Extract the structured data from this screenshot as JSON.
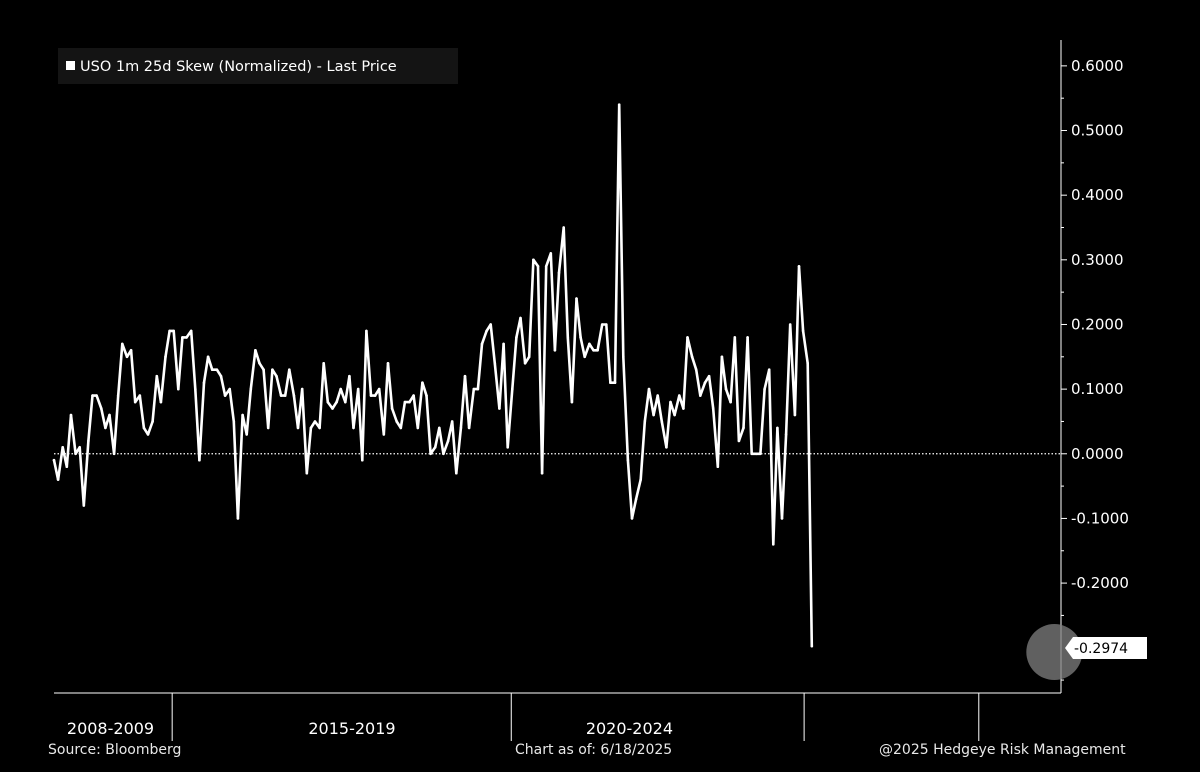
{
  "chart_data": {
    "type": "line",
    "legend": {
      "label": "USO 1m 25d Skew (Normalized) - Last Price",
      "placement": "top-left"
    },
    "line_color": "#ffffff",
    "background_color": "#000000",
    "zero_line_style": "dotted",
    "ylim": [
      -0.37,
      0.64
    ],
    "yticks": [
      {
        "value": 0.6,
        "label": "0.6000"
      },
      {
        "value": 0.5,
        "label": "0.5000"
      },
      {
        "value": 0.4,
        "label": "0.4000"
      },
      {
        "value": 0.3,
        "label": "0.3000"
      },
      {
        "value": 0.2,
        "label": "0.2000"
      },
      {
        "value": 0.1,
        "label": "0.1000"
      },
      {
        "value": 0.0,
        "label": "0.0000"
      },
      {
        "value": -0.1,
        "label": "-0.1000"
      },
      {
        "value": -0.2,
        "label": "-0.2000"
      }
    ],
    "xlim": [
      2006.0,
      2025.6
    ],
    "x_ticks": [
      2008.3,
      2014.9,
      2020.6,
      2024.0
    ],
    "period_labels": [
      {
        "x": 2007.1,
        "label": "2008-2009"
      },
      {
        "x": 2011.8,
        "label": "2015-2019"
      },
      {
        "x": 2017.2,
        "label": "2020-2024"
      }
    ],
    "last_value": {
      "x": 2025.47,
      "value": -0.2974,
      "label": "-0.2974"
    },
    "series": [
      {
        "points": [
          [
            2006.0,
            -0.01
          ],
          [
            2006.08,
            -0.04
          ],
          [
            2006.17,
            0.01
          ],
          [
            2006.25,
            -0.02
          ],
          [
            2006.33,
            0.06
          ],
          [
            2006.42,
            -0.0
          ],
          [
            2006.5,
            0.01
          ],
          [
            2006.58,
            -0.08
          ],
          [
            2006.67,
            0.02
          ],
          [
            2006.75,
            0.09
          ],
          [
            2006.83,
            0.09
          ],
          [
            2006.92,
            0.07
          ],
          [
            2007.0,
            0.04
          ],
          [
            2007.08,
            0.06
          ],
          [
            2007.17,
            0.0
          ],
          [
            2007.25,
            0.09
          ],
          [
            2007.33,
            0.17
          ],
          [
            2007.42,
            0.15
          ],
          [
            2007.5,
            0.16
          ],
          [
            2007.58,
            0.08
          ],
          [
            2007.67,
            0.09
          ],
          [
            2007.75,
            0.04
          ],
          [
            2007.83,
            0.03
          ],
          [
            2007.92,
            0.05
          ],
          [
            2008.0,
            0.12
          ],
          [
            2008.08,
            0.08
          ],
          [
            2008.17,
            0.15
          ],
          [
            2008.25,
            0.19
          ],
          [
            2008.33,
            0.19
          ],
          [
            2008.42,
            0.1
          ],
          [
            2008.5,
            0.18
          ],
          [
            2008.58,
            0.18
          ],
          [
            2008.67,
            0.19
          ],
          [
            2008.75,
            0.1
          ],
          [
            2008.83,
            -0.01
          ],
          [
            2008.92,
            0.11
          ],
          [
            2009.0,
            0.15
          ],
          [
            2009.08,
            0.13
          ],
          [
            2009.17,
            0.13
          ],
          [
            2009.25,
            0.12
          ],
          [
            2009.33,
            0.09
          ],
          [
            2009.42,
            0.1
          ],
          [
            2009.5,
            0.05
          ],
          [
            2009.58,
            -0.1
          ],
          [
            2009.67,
            0.06
          ],
          [
            2009.75,
            0.03
          ],
          [
            2009.83,
            0.1
          ],
          [
            2009.92,
            0.16
          ],
          [
            2010.0,
            0.14
          ],
          [
            2010.08,
            0.13
          ],
          [
            2010.17,
            0.04
          ],
          [
            2010.25,
            0.13
          ],
          [
            2010.33,
            0.12
          ],
          [
            2010.42,
            0.09
          ],
          [
            2010.5,
            0.09
          ],
          [
            2010.58,
            0.13
          ],
          [
            2010.67,
            0.09
          ],
          [
            2010.75,
            0.04
          ],
          [
            2010.83,
            0.1
          ],
          [
            2010.92,
            -0.03
          ],
          [
            2011.0,
            0.04
          ],
          [
            2011.08,
            0.05
          ],
          [
            2011.17,
            0.04
          ],
          [
            2011.25,
            0.14
          ],
          [
            2011.33,
            0.08
          ],
          [
            2011.42,
            0.07
          ],
          [
            2011.5,
            0.08
          ],
          [
            2011.58,
            0.1
          ],
          [
            2011.67,
            0.08
          ],
          [
            2011.75,
            0.12
          ],
          [
            2011.83,
            0.04
          ],
          [
            2011.92,
            0.1
          ],
          [
            2012.0,
            -0.01
          ],
          [
            2012.08,
            0.19
          ],
          [
            2012.17,
            0.09
          ],
          [
            2012.25,
            0.09
          ],
          [
            2012.33,
            0.1
          ],
          [
            2012.42,
            0.03
          ],
          [
            2012.5,
            0.14
          ],
          [
            2012.58,
            0.07
          ],
          [
            2012.67,
            0.05
          ],
          [
            2012.75,
            0.04
          ],
          [
            2012.83,
            0.08
          ],
          [
            2012.92,
            0.08
          ],
          [
            2013.0,
            0.09
          ],
          [
            2013.08,
            0.04
          ],
          [
            2013.17,
            0.11
          ],
          [
            2013.25,
            0.09
          ],
          [
            2013.33,
            0.0
          ],
          [
            2013.42,
            0.01
          ],
          [
            2013.5,
            0.04
          ],
          [
            2013.58,
            0.0
          ],
          [
            2013.67,
            0.02
          ],
          [
            2013.75,
            0.05
          ],
          [
            2013.83,
            -0.03
          ],
          [
            2013.92,
            0.04
          ],
          [
            2014.0,
            0.12
          ],
          [
            2014.08,
            0.04
          ],
          [
            2014.17,
            0.1
          ],
          [
            2014.25,
            0.1
          ],
          [
            2014.33,
            0.17
          ],
          [
            2014.42,
            0.19
          ],
          [
            2014.5,
            0.2
          ],
          [
            2014.58,
            0.14
          ],
          [
            2014.67,
            0.07
          ],
          [
            2014.75,
            0.17
          ],
          [
            2014.83,
            0.01
          ],
          [
            2014.92,
            0.1
          ],
          [
            2015.0,
            0.18
          ],
          [
            2015.08,
            0.21
          ],
          [
            2015.17,
            0.14
          ],
          [
            2015.25,
            0.15
          ],
          [
            2015.33,
            0.3
          ],
          [
            2015.42,
            0.29
          ],
          [
            2015.5,
            -0.03
          ],
          [
            2015.58,
            0.29
          ],
          [
            2015.67,
            0.31
          ],
          [
            2015.75,
            0.16
          ],
          [
            2015.83,
            0.28
          ],
          [
            2015.92,
            0.35
          ],
          [
            2016.0,
            0.18
          ],
          [
            2016.08,
            0.08
          ],
          [
            2016.17,
            0.24
          ],
          [
            2016.25,
            0.18
          ],
          [
            2016.33,
            0.15
          ],
          [
            2016.42,
            0.17
          ],
          [
            2016.5,
            0.16
          ],
          [
            2016.58,
            0.16
          ],
          [
            2016.67,
            0.2
          ],
          [
            2016.75,
            0.2
          ],
          [
            2016.83,
            0.11
          ],
          [
            2016.92,
            0.11
          ],
          [
            2017.0,
            0.54
          ],
          [
            2017.08,
            0.15
          ],
          [
            2017.17,
            -0.01
          ],
          [
            2017.25,
            -0.1
          ],
          [
            2017.33,
            -0.07
          ],
          [
            2017.42,
            -0.04
          ],
          [
            2017.5,
            0.05
          ],
          [
            2017.58,
            0.1
          ],
          [
            2017.67,
            0.06
          ],
          [
            2017.75,
            0.09
          ],
          [
            2017.83,
            0.05
          ],
          [
            2017.92,
            0.01
          ],
          [
            2018.0,
            0.08
          ],
          [
            2018.08,
            0.06
          ],
          [
            2018.17,
            0.09
          ],
          [
            2018.25,
            0.07
          ],
          [
            2018.33,
            0.18
          ],
          [
            2018.42,
            0.15
          ],
          [
            2018.5,
            0.13
          ],
          [
            2018.58,
            0.09
          ],
          [
            2018.67,
            0.11
          ],
          [
            2018.75,
            0.12
          ],
          [
            2018.83,
            0.07
          ],
          [
            2018.92,
            -0.02
          ],
          [
            2019.0,
            0.15
          ],
          [
            2019.08,
            0.1
          ],
          [
            2019.17,
            0.08
          ],
          [
            2019.25,
            0.18
          ],
          [
            2019.33,
            0.02
          ],
          [
            2019.42,
            0.04
          ],
          [
            2019.5,
            0.18
          ],
          [
            2019.58,
            0.0
          ],
          [
            2019.67,
            0.0
          ],
          [
            2019.75,
            0.0
          ],
          [
            2019.83,
            0.1
          ],
          [
            2019.92,
            0.13
          ],
          [
            2020.0,
            -0.14
          ],
          [
            2020.08,
            0.04
          ],
          [
            2020.17,
            -0.1
          ],
          [
            2020.25,
            0.03
          ],
          [
            2020.33,
            0.2
          ],
          [
            2020.42,
            0.06
          ],
          [
            2020.5,
            0.29
          ],
          [
            2020.58,
            0.19
          ],
          [
            2020.67,
            0.14
          ],
          [
            2020.75,
            -0.2974
          ]
        ]
      }
    ]
  },
  "footer": {
    "source": "Source: Bloomberg",
    "chart_as_of": "Chart as of: 6/18/2025",
    "copyright": "@2025 Hedgeye Risk Management"
  }
}
